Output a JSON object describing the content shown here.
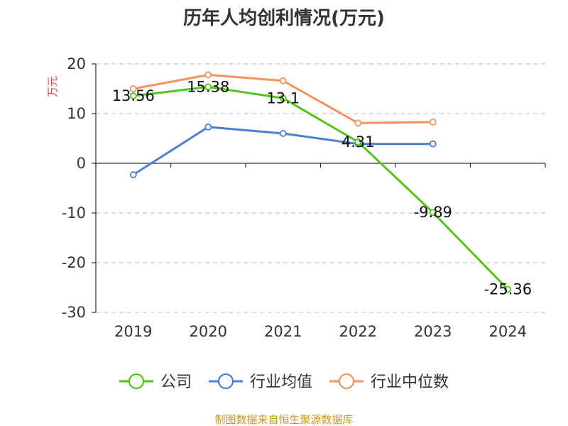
{
  "chart_data": {
    "type": "line",
    "title": "历年人均创利情况(万元)",
    "ylabel": "万元",
    "xlabel": "",
    "categories": [
      "2019",
      "2020",
      "2021",
      "2022",
      "2023",
      "2024"
    ],
    "ylim": [
      -30,
      20
    ],
    "yticks": [
      20,
      10,
      0,
      -10,
      -20,
      -30
    ],
    "grid": true,
    "legend_position": "bottom",
    "series": [
      {
        "name": "公司",
        "color": "#52c41a",
        "values": [
          13.56,
          15.38,
          13.1,
          4.31,
          -9.89,
          -25.36
        ],
        "labels": [
          "13.56",
          "15.38",
          "13.1",
          "4.31",
          "-9.89",
          "-25.36"
        ]
      },
      {
        "name": "行业均值",
        "color": "#4a7fd6",
        "values": [
          -2.3,
          7.3,
          6.0,
          3.9,
          3.9,
          null
        ]
      },
      {
        "name": "行业中位数",
        "color": "#f5925e",
        "values": [
          15.0,
          17.8,
          16.6,
          8.1,
          8.3,
          null
        ]
      }
    ]
  },
  "source_text": "制图数据来自恒生聚源数据库"
}
